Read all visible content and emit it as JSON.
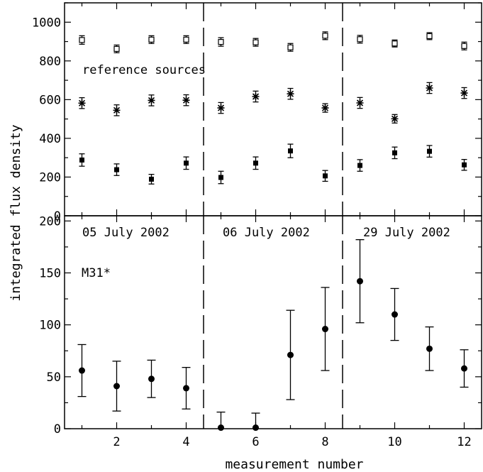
{
  "chart_data": [
    {
      "type": "scatter",
      "panel": "top",
      "ylabel": "integrated flux density",
      "ylim": [
        0,
        1100
      ],
      "yticks": [
        0,
        200,
        400,
        600,
        800,
        1000
      ],
      "xlim": [
        0.5,
        12.5
      ],
      "annotations": [
        "reference sources"
      ],
      "series": [
        {
          "marker": "open-square",
          "x": [
            1,
            2,
            3,
            4,
            5,
            6,
            7,
            8,
            9,
            10,
            11,
            12
          ],
          "y": [
            908,
            862,
            910,
            910,
            898,
            896,
            870,
            930,
            912,
            890,
            928,
            877
          ],
          "err": [
            22,
            20,
            20,
            20,
            22,
            20,
            20,
            20,
            20,
            18,
            18,
            20
          ]
        },
        {
          "marker": "star",
          "x": [
            1,
            2,
            3,
            4,
            5,
            6,
            7,
            8,
            9,
            10,
            11,
            12
          ],
          "y": [
            582,
            545,
            596,
            597,
            557,
            616,
            630,
            557,
            583,
            501,
            660,
            634
          ],
          "err": [
            28,
            28,
            28,
            28,
            28,
            28,
            28,
            22,
            28,
            22,
            28,
            28
          ]
        },
        {
          "marker": "filled-square",
          "x": [
            1,
            2,
            3,
            4,
            5,
            6,
            7,
            8,
            9,
            10,
            11,
            12
          ],
          "y": [
            288,
            238,
            189,
            272,
            198,
            272,
            335,
            206,
            260,
            325,
            333,
            263
          ],
          "err": [
            32,
            30,
            25,
            32,
            32,
            32,
            35,
            28,
            30,
            30,
            30,
            28
          ]
        }
      ]
    },
    {
      "type": "scatter",
      "panel": "bottom",
      "xlabel": "measurement number",
      "ylabel": "integrated flux density",
      "ylim": [
        0,
        205
      ],
      "yticks": [
        0,
        50,
        100,
        150,
        200
      ],
      "xlim": [
        0.5,
        12.5
      ],
      "xticks": [
        2,
        4,
        6,
        8,
        10,
        12
      ],
      "annotations": [
        "M31*"
      ],
      "group_labels": [
        "05 July 2002",
        "06 July 2002",
        "29 July 2002"
      ],
      "separators": [
        4.5,
        8.5
      ],
      "series": [
        {
          "marker": "filled-circle",
          "x": [
            1,
            2,
            3,
            4,
            5,
            6,
            7,
            8,
            9,
            10,
            11,
            12
          ],
          "y": [
            56,
            41,
            48,
            39,
            1,
            1,
            71,
            96,
            142,
            110,
            77,
            58
          ],
          "err_low": [
            25,
            24,
            18,
            20,
            15,
            15,
            43,
            40,
            40,
            25,
            21,
            18
          ],
          "err_high": [
            25,
            24,
            18,
            20,
            15,
            14,
            43,
            40,
            40,
            25,
            21,
            18
          ]
        }
      ]
    }
  ]
}
